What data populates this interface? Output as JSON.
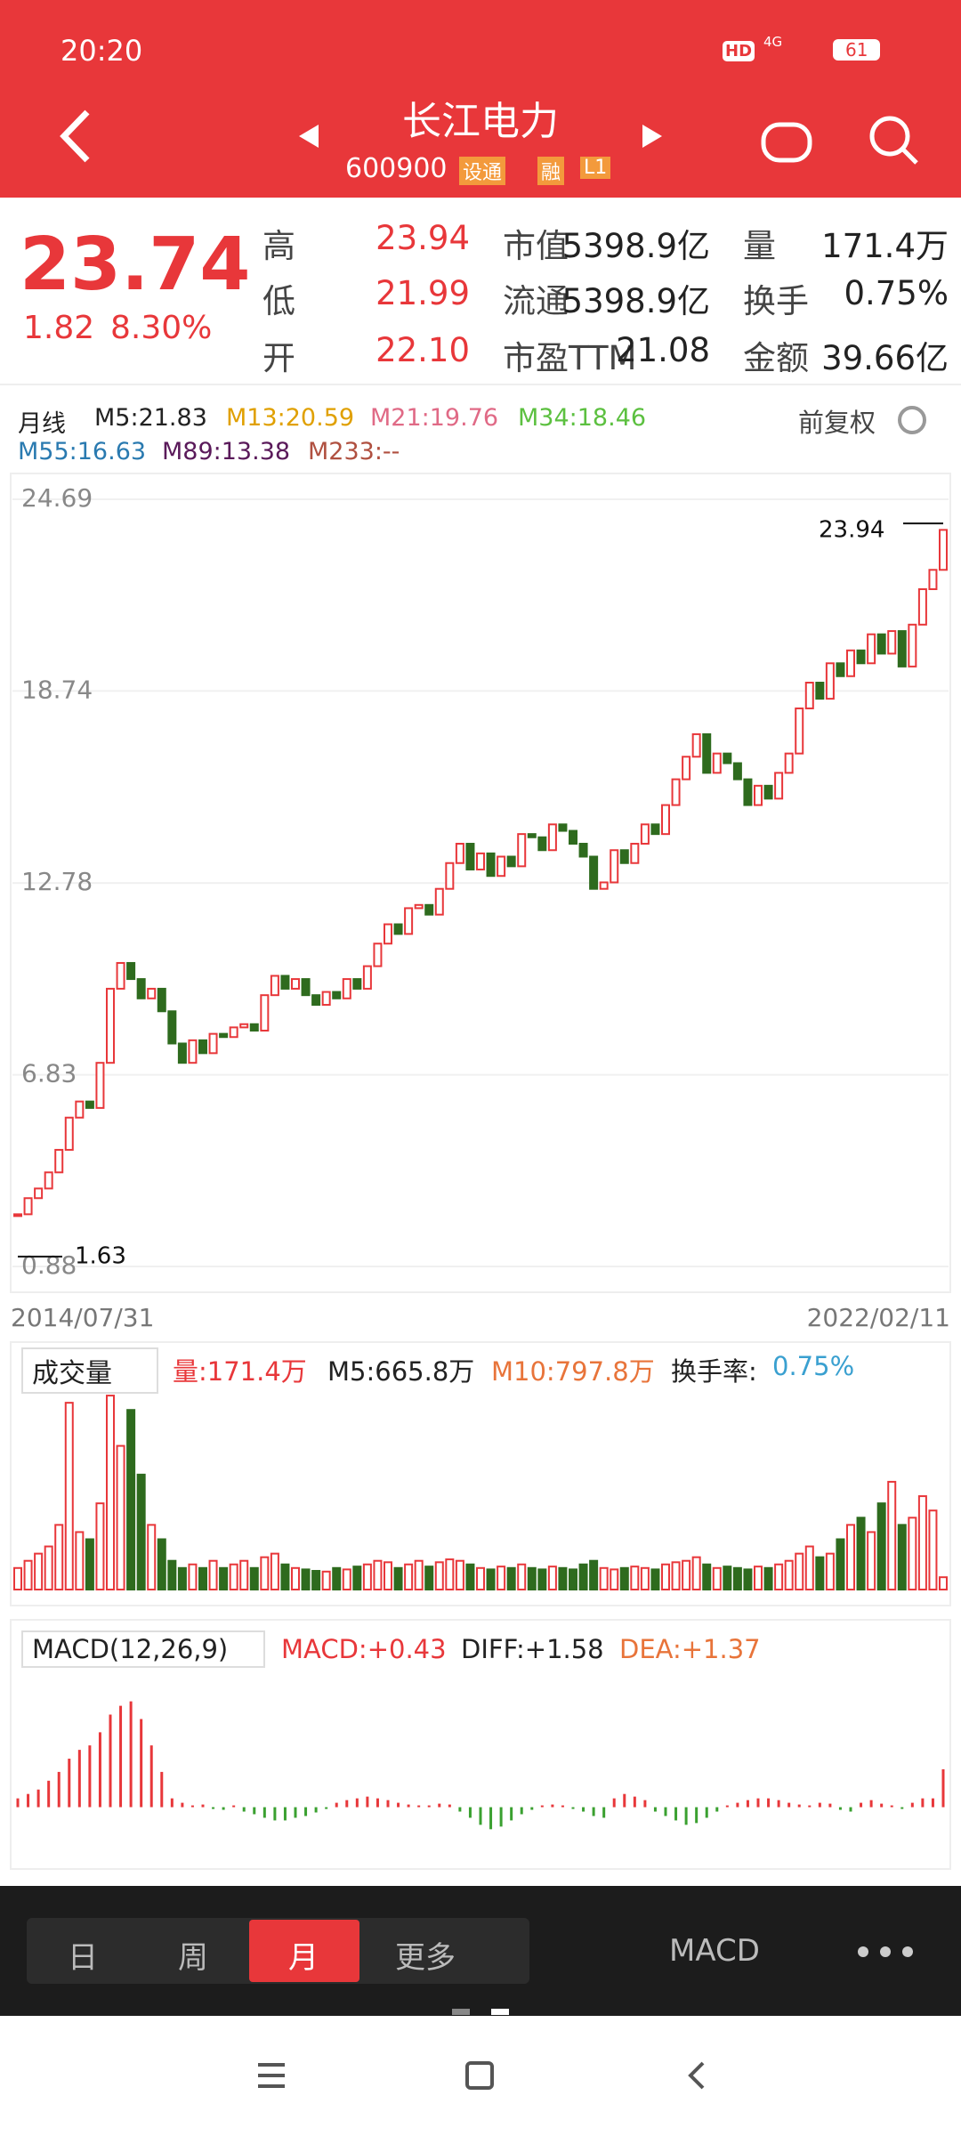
{
  "status": {
    "time": "20:20",
    "hd": "HD",
    "net": "4G",
    "battery": "61"
  },
  "header": {
    "title": "长江电力",
    "code": "600900",
    "tag1": "设通",
    "tag2": "融",
    "tag3": "L1"
  },
  "quote": {
    "price": "23.74",
    "change": "1.82",
    "pct": "8.30%",
    "rows": [
      [
        "高",
        "23.94",
        "市值",
        "5398.9亿",
        "量",
        "171.4万"
      ],
      [
        "低",
        "21.99",
        "流通",
        "5398.9亿",
        "换手",
        "0.75%"
      ],
      [
        "开",
        "22.10",
        "市盈TTM",
        "21.08",
        "金额",
        "39.66亿"
      ]
    ]
  },
  "ma": {
    "period": "月线",
    "items": [
      {
        "text": "M5:21.83",
        "color": "#222222"
      },
      {
        "text": "M13:20.59",
        "color": "#e0a000"
      },
      {
        "text": "M21:19.76",
        "color": "#e06a86"
      },
      {
        "text": "M34:18.46",
        "color": "#5cc040"
      },
      {
        "text": "M55:16.63",
        "color": "#2a7ab0"
      },
      {
        "text": "M89:13.38",
        "color": "#5a1a5a"
      },
      {
        "text": "M233:--",
        "color": "#b05040"
      }
    ],
    "adjust": "前复权"
  },
  "chart": {
    "type": "candlestick",
    "ylim": [
      0.88,
      24.69
    ],
    "yticks": [
      24.69,
      18.74,
      12.78,
      6.83,
      0.88
    ],
    "up_color": "#e8373a",
    "down_color": "#2e6b1e",
    "close": [
      2.5,
      3.0,
      3.3,
      3.8,
      4.5,
      5.5,
      6.0,
      5.8,
      7.2,
      9.5,
      10.3,
      9.8,
      9.2,
      9.5,
      8.8,
      7.8,
      7.2,
      7.9,
      7.5,
      8.1,
      8.0,
      8.3,
      8.4,
      8.2,
      9.3,
      9.9,
      9.5,
      9.8,
      9.3,
      9.0,
      9.4,
      9.2,
      9.8,
      9.5,
      10.2,
      10.9,
      11.5,
      11.2,
      12.0,
      12.1,
      11.8,
      12.6,
      13.4,
      14.0,
      13.2,
      13.7,
      13.0,
      13.6,
      13.3,
      14.3,
      14.2,
      13.8,
      14.6,
      14.4,
      14.0,
      13.6,
      12.6,
      12.8,
      13.8,
      13.4,
      14.0,
      14.6,
      14.3,
      15.2,
      16.0,
      16.7,
      17.4,
      16.2,
      16.8,
      16.5,
      16.0,
      15.2,
      15.8,
      15.4,
      16.2,
      16.8,
      18.2,
      19.0,
      18.5,
      19.6,
      19.2,
      20.0,
      19.6,
      20.5,
      19.9,
      20.6,
      19.5,
      20.8,
      21.9,
      22.5,
      23.74
    ],
    "max_label": 23.94,
    "min_label": 1.63,
    "start_date": "2014/07/31",
    "end_date": "2022/02/11"
  },
  "volume": {
    "type": "bar",
    "menu": "成交量",
    "vol": "量:171.4万",
    "m5": "M5:665.8万",
    "m10": "M10:797.8万",
    "turnover_label": "换手率:",
    "turnover": "0.75%",
    "ylim": [
      0,
      2800
    ],
    "values": [
      300,
      400,
      500,
      600,
      900,
      2600,
      800,
      700,
      1200,
      2700,
      2000,
      2500,
      1600,
      900,
      700,
      400,
      300,
      350,
      300,
      400,
      300,
      350,
      400,
      300,
      450,
      500,
      350,
      300,
      280,
      260,
      250,
      300,
      280,
      320,
      350,
      400,
      380,
      300,
      350,
      400,
      320,
      380,
      420,
      400,
      350,
      300,
      280,
      320,
      300,
      350,
      300,
      280,
      320,
      300,
      280,
      350,
      400,
      300,
      280,
      300,
      320,
      300,
      280,
      350,
      380,
      400,
      450,
      350,
      300,
      320,
      300,
      280,
      320,
      300,
      350,
      400,
      500,
      600,
      450,
      500,
      700,
      900,
      1000,
      800,
      1200,
      1500,
      900,
      1000,
      1300,
      1100,
      171.4
    ]
  },
  "macd": {
    "type": "bar",
    "menu": "MACD(12,26,9)",
    "macd": "MACD:+0.43",
    "diff": "DIFF:+1.58",
    "dea": "DEA:+1.37",
    "ylim": [
      -0.6,
      1.6
    ],
    "values": [
      0.1,
      0.15,
      0.2,
      0.3,
      0.4,
      0.55,
      0.65,
      0.7,
      0.85,
      1.05,
      1.15,
      1.2,
      1.0,
      0.7,
      0.4,
      0.1,
      0.05,
      0.02,
      0.03,
      -0.02,
      -0.03,
      0.02,
      -0.05,
      -0.08,
      -0.12,
      -0.15,
      -0.15,
      -0.12,
      -0.1,
      -0.06,
      -0.02,
      0.05,
      0.08,
      0.1,
      0.12,
      0.1,
      0.08,
      0.05,
      0.03,
      0.02,
      0.02,
      0.04,
      0.03,
      -0.05,
      -0.12,
      -0.2,
      -0.25,
      -0.22,
      -0.15,
      -0.08,
      -0.03,
      0.02,
      0.03,
      0.02,
      -0.02,
      -0.05,
      -0.1,
      -0.12,
      0.1,
      0.15,
      0.12,
      0.08,
      -0.05,
      -0.1,
      -0.15,
      -0.2,
      -0.18,
      -0.12,
      -0.05,
      0.02,
      0.05,
      0.08,
      0.1,
      0.1,
      0.08,
      0.05,
      0.03,
      0.02,
      0.05,
      0.04,
      -0.03,
      -0.05,
      0.05,
      0.08,
      0.04,
      0.02,
      -0.02,
      0.05,
      0.1,
      0.1,
      0.43
    ]
  },
  "toolbar": {
    "tabs": [
      "日",
      "周",
      "月",
      "更多"
    ],
    "indicator": "MACD"
  }
}
